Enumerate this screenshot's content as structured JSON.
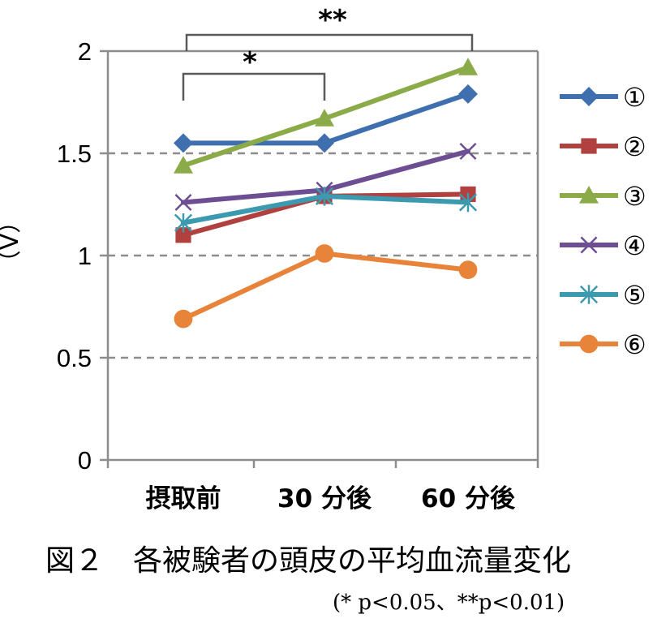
{
  "chart_data": {
    "type": "line",
    "categories": [
      "摂取前",
      "30 分後",
      "60 分後"
    ],
    "ylabel": "（V）",
    "ylim": [
      0,
      2
    ],
    "yticks": [
      "0",
      "0.5",
      "1",
      "1.5",
      "2"
    ],
    "grid": "dashed horizontal at 0.5, 1, 1.5",
    "legend_position": "right",
    "series": [
      {
        "name": "①",
        "marker": "diamond",
        "color": "#3F6FAE",
        "values": [
          1.55,
          1.55,
          1.79
        ]
      },
      {
        "name": "②",
        "marker": "square",
        "color": "#B0413E",
        "values": [
          1.1,
          1.29,
          1.3
        ]
      },
      {
        "name": "③",
        "marker": "triangle",
        "color": "#8BAA48",
        "values": [
          1.44,
          1.67,
          1.92
        ]
      },
      {
        "name": "④",
        "marker": "x",
        "color": "#6E4E93",
        "values": [
          1.26,
          1.32,
          1.51
        ]
      },
      {
        "name": "⑤",
        "marker": "star",
        "color": "#3B9AB0",
        "values": [
          1.16,
          1.29,
          1.26
        ]
      },
      {
        "name": "⑥",
        "marker": "circle",
        "color": "#E7843A",
        "values": [
          0.69,
          1.01,
          0.93
        ]
      }
    ],
    "significance": [
      {
        "from": "摂取前",
        "to": "30 分後",
        "label": "*"
      },
      {
        "from": "摂取前",
        "to": "60 分後",
        "label": "**"
      }
    ],
    "caption": "図２　各被験者の頭皮の平均血流量変化",
    "note": "(* p<0.05、**p<0.01)"
  }
}
